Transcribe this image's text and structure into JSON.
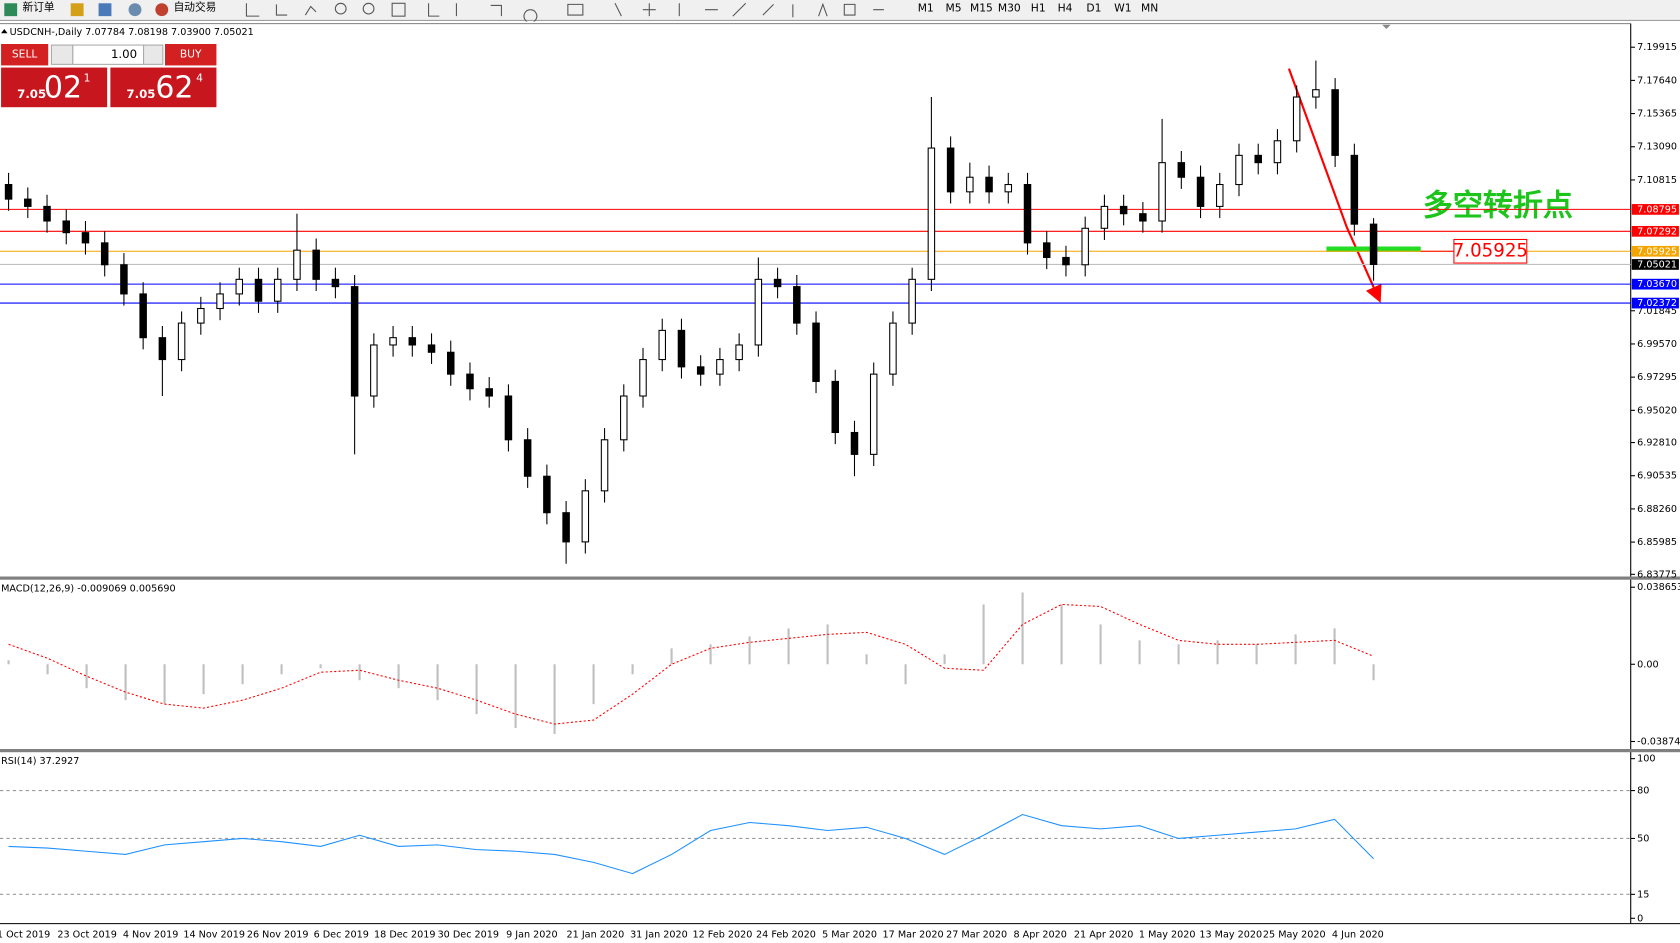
{
  "toolbar": {
    "buttons": [
      "新订单",
      "自动交易"
    ],
    "timeframes": [
      "M1",
      "M5",
      "M15",
      "M30",
      "H1",
      "H4",
      "D1",
      "W1",
      "MN"
    ]
  },
  "order_panel": {
    "sell": "SELL",
    "lot": "1.00",
    "buy": "BUY",
    "sell_big": "7.05",
    "sell_pips": "02",
    "sell_frac": "1",
    "buy_big": "7.05",
    "buy_pips": "62",
    "buy_frac": "4"
  },
  "chart_data": [
    {
      "type": "candlestick",
      "title": "USDCNH-,Daily 7.07784 7.08198 7.03900 7.05021",
      "date_labels": [
        "1 Oct 2019",
        "23 Oct 2019",
        "4 Nov 2019",
        "14 Nov 2019",
        "26 Nov 2019",
        "6 Dec 2019",
        "18 Dec 2019",
        "30 Dec 2019",
        "9 Jan 2020",
        "21 Jan 2020",
        "31 Jan 2020",
        "12 Feb 2020",
        "24 Feb 2020",
        "5 Mar 2020",
        "17 Mar 2020",
        "27 Mar 2020",
        "8 Apr 2020",
        "21 Apr 2020",
        "1 May 2020",
        "13 May 2020",
        "25 May 2020",
        "4 Jun 2020"
      ],
      "open": [
        7.105,
        7.095,
        7.09,
        7.08,
        7.072,
        7.065,
        7.05,
        7.03,
        7.0,
        6.985,
        7.01,
        7.02,
        7.03,
        7.04,
        7.025,
        7.04,
        7.06,
        7.04,
        7.035,
        6.96,
        6.995,
        7.0,
        6.995,
        6.99,
        6.975,
        6.965,
        6.96,
        6.93,
        6.905,
        6.88,
        6.86,
        6.895,
        6.93,
        6.96,
        6.985,
        7.005,
        6.98,
        6.975,
        6.985,
        6.995,
        7.04,
        7.035,
        7.01,
        6.97,
        6.935,
        6.92,
        6.975,
        7.01,
        7.04,
        7.13,
        7.1,
        7.11,
        7.1,
        7.105,
        7.065,
        7.055,
        7.05,
        7.075,
        7.09,
        7.085,
        7.08,
        7.12,
        7.11,
        7.09,
        7.105,
        7.125,
        7.12,
        7.135,
        7.165,
        7.17,
        7.125,
        7.07784
      ],
      "high": [
        7.113,
        7.103,
        7.098,
        7.088,
        7.08,
        7.073,
        7.058,
        7.038,
        7.008,
        7.018,
        7.028,
        7.038,
        7.048,
        7.048,
        7.048,
        7.085,
        7.068,
        7.048,
        7.043,
        7.003,
        7.008,
        7.008,
        7.003,
        6.998,
        6.983,
        6.973,
        6.968,
        6.938,
        6.913,
        6.888,
        6.903,
        6.938,
        6.968,
        6.993,
        7.013,
        7.013,
        6.988,
        6.993,
        7.003,
        7.055,
        7.048,
        7.043,
        7.018,
        6.978,
        6.943,
        6.983,
        7.018,
        7.048,
        7.165,
        7.138,
        7.12,
        7.118,
        7.113,
        7.113,
        7.073,
        7.063,
        7.083,
        7.098,
        7.098,
        7.093,
        7.15,
        7.128,
        7.118,
        7.113,
        7.133,
        7.133,
        7.143,
        7.173,
        7.19,
        7.178,
        7.133,
        7.08198
      ],
      "low": [
        7.087,
        7.082,
        7.072,
        7.064,
        7.057,
        7.042,
        7.022,
        6.992,
        6.96,
        6.977,
        7.002,
        7.012,
        7.022,
        7.017,
        7.017,
        7.032,
        7.032,
        7.027,
        6.92,
        6.952,
        6.987,
        6.987,
        6.982,
        6.967,
        6.957,
        6.952,
        6.922,
        6.897,
        6.872,
        6.845,
        6.852,
        6.887,
        6.922,
        6.952,
        6.977,
        6.972,
        6.967,
        6.967,
        6.977,
        6.987,
        7.027,
        7.002,
        6.962,
        6.927,
        6.905,
        6.912,
        6.967,
        7.002,
        7.032,
        7.092,
        7.092,
        7.092,
        7.092,
        7.057,
        7.047,
        7.042,
        7.042,
        7.067,
        7.077,
        7.072,
        7.072,
        7.102,
        7.082,
        7.082,
        7.097,
        7.112,
        7.112,
        7.127,
        7.157,
        7.117,
        7.07,
        7.039
      ],
      "close": [
        7.095,
        7.09,
        7.08,
        7.072,
        7.065,
        7.05,
        7.03,
        7.0,
        6.985,
        7.01,
        7.02,
        7.03,
        7.04,
        7.025,
        7.04,
        7.06,
        7.04,
        7.035,
        6.96,
        6.995,
        7.0,
        6.995,
        6.99,
        6.975,
        6.965,
        6.96,
        6.93,
        6.905,
        6.88,
        6.86,
        6.895,
        6.93,
        6.96,
        6.985,
        7.005,
        6.98,
        6.975,
        6.985,
        6.995,
        7.04,
        7.035,
        7.01,
        6.97,
        6.935,
        6.92,
        6.975,
        7.01,
        7.04,
        7.13,
        7.1,
        7.11,
        7.1,
        7.105,
        7.065,
        7.055,
        7.05,
        7.075,
        7.09,
        7.085,
        7.08,
        7.12,
        7.11,
        7.09,
        7.105,
        7.125,
        7.12,
        7.135,
        7.165,
        7.17,
        7.125,
        7.07784,
        7.05021
      ],
      "ylim": [
        6.83626,
        7.21531
      ],
      "yticks": [
        7.19915,
        {
          "value": 7.1764,
          "label": "7.17640"
        },
        7.15365,
        {
          "value": 7.1309,
          "label": "7.13090"
        },
        7.10815,
        7.01845,
        {
          "value": 6.9957,
          "label": "6.99570"
        },
        6.97295,
        {
          "value": 6.9502,
          "label": "6.95020"
        },
        {
          "value": 6.9281,
          "label": "6.92810"
        },
        6.90535,
        {
          "value": 6.8826,
          "label": "6.88260"
        },
        6.85985,
        6.83775
      ],
      "levels": [
        {
          "value": 7.08795,
          "color": "#ff0000"
        },
        {
          "value": 7.07292,
          "color": "#ff0000"
        },
        {
          "value": 7.05925,
          "color": "#f5a500"
        },
        {
          "value": 7.05021,
          "color": "#000000"
        },
        {
          "value": 7.0367,
          "label": "7.03670",
          "color": "#0000ff"
        },
        {
          "value": 7.02372,
          "color": "#0000ff"
        }
      ],
      "annotation": "多空转折点",
      "marker": {
        "value": 7.05925
      }
    },
    {
      "type": "bar",
      "title": "MACD(12,26,9) -0.009069 0.005690",
      "series": [
        {
          "color": "#c0c0c0",
          "values": [
            0.002,
            -0.005,
            -0.012,
            -0.018,
            -0.02,
            -0.015,
            -0.01,
            -0.005,
            -0.002,
            -0.008,
            -0.012,
            -0.018,
            -0.025,
            -0.032,
            -0.035,
            -0.02,
            -0.005,
            0.008,
            0.01,
            0.014,
            0.018,
            0.02,
            0.005,
            -0.01,
            0.005,
            0.03,
            0.036,
            0.03,
            0.02,
            0.012,
            0.01,
            0.012,
            0.01,
            0.015,
            0.018,
            -0.008
          ]
        },
        {
          "color": "#ff0000",
          "values": [
            0.01,
            0.003,
            -0.006,
            -0.014,
            -0.02,
            -0.022,
            -0.018,
            -0.012,
            -0.004,
            -0.003,
            -0.008,
            -0.012,
            -0.018,
            -0.025,
            -0.03,
            -0.028,
            -0.015,
            0.0,
            0.008,
            0.011,
            0.013,
            0.015,
            0.016,
            0.01,
            -0.002,
            -0.003,
            0.02,
            0.03,
            0.029,
            0.02,
            0.012,
            0.01,
            0.01,
            0.011,
            0.012,
            0.004
          ]
        }
      ],
      "ylim": [
        -0.038745,
        0.038653
      ],
      "yticks": [
        0.038653,
        {
          "value": 0,
          "label": "0.00"
        },
        -0.038745
      ]
    },
    {
      "type": "line",
      "title": "RSI(14) 37.2927",
      "color": "#1e90ff",
      "values": [
        45,
        44,
        42,
        40,
        46,
        48,
        50,
        48,
        45,
        52,
        45,
        46,
        43,
        42,
        40,
        35,
        28,
        40,
        55,
        60,
        58,
        55,
        57,
        50,
        40,
        52,
        65,
        58,
        56,
        58,
        50,
        52,
        54,
        56,
        62,
        37.29
      ],
      "ylim": [
        0,
        100
      ],
      "yticks": [
        0,
        15,
        50,
        80,
        100
      ],
      "grid": true
    }
  ]
}
